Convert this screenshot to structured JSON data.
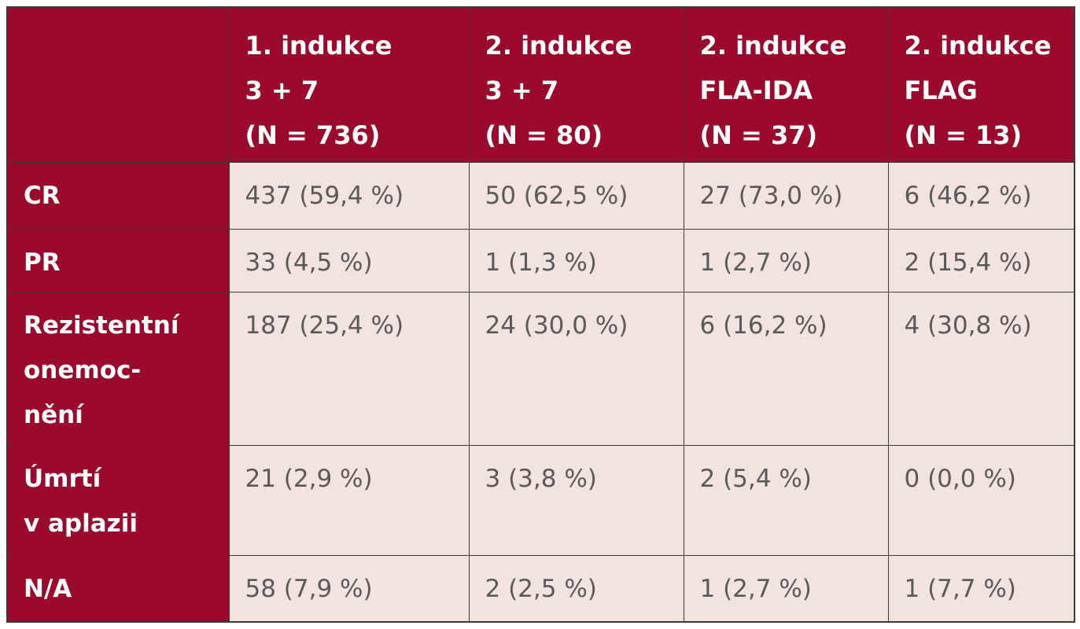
{
  "table": {
    "columns": [
      [
        "1. indukce",
        "3 + 7",
        "(N = 736)"
      ],
      [
        "2. indukce",
        "3 + 7",
        "(N = 80)"
      ],
      [
        "2. indukce",
        "FLA-IDA",
        "(N = 37)"
      ],
      [
        "2. indukce",
        "FLAG",
        "(N = 13)"
      ]
    ],
    "rows": [
      {
        "label": [
          "CR"
        ],
        "cells": [
          "437 (59,4 %)",
          "50 (62,5 %)",
          "27 (73,0 %)",
          "6 (46,2 %)"
        ]
      },
      {
        "label": [
          "PR"
        ],
        "cells": [
          "33 (4,5 %)",
          "1 (1,3 %)",
          "1 (2,7 %)",
          "2 (15,4 %)"
        ]
      },
      {
        "label": [
          "Rezistentní",
          "onemoc-",
          "nění"
        ],
        "cells": [
          "187 (25,4 %)",
          "24 (30,0 %)",
          "6 (16,2 %)",
          "4 (30,8 %)"
        ]
      },
      {
        "label": [
          "Úmrtí",
          "v aplazii"
        ],
        "cells": [
          "21 (2,9 %)",
          "3 (3,8 %)",
          "2 (5,4 %)",
          "0 (0,0 %)"
        ]
      },
      {
        "label": [
          "N/A"
        ],
        "cells": [
          "58 (7,9 %)",
          "2 (2,5 %)",
          "1 (2,7 %)",
          "1 (7,7 %)"
        ]
      }
    ]
  }
}
